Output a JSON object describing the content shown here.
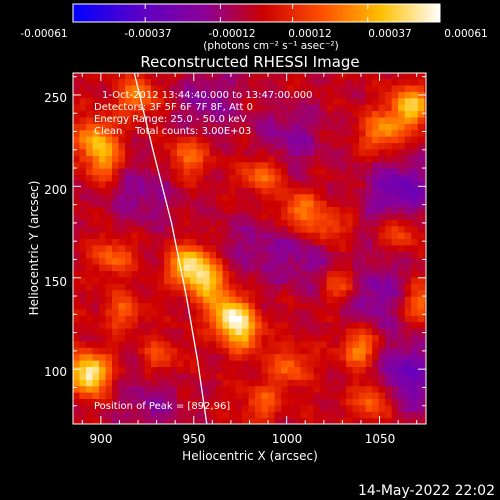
{
  "chart_data": {
    "type": "heatmap",
    "title": "Reconstructed RHESSI Image",
    "xlabel": "Heliocentric X (arcsec)",
    "ylabel": "Heliocentric Y (arcsec)",
    "xlim": [
      885,
      1075
    ],
    "ylim": [
      70,
      262
    ],
    "x_ticks": [
      900,
      950,
      1000,
      1050
    ],
    "y_ticks": [
      100,
      150,
      200,
      250
    ],
    "colorbar": {
      "range": [
        -0.00061,
        0.00061
      ],
      "tick_values": [
        -0.00061,
        -0.00037,
        -0.00012,
        0.00012,
        0.00037,
        0.00061
      ],
      "tick_labels": [
        "-0.00061",
        "-0.00037",
        "-0.00012",
        "0.00012",
        "0.00037",
        "0.00061"
      ],
      "units_label": "(photons cm⁻² s⁻¹ asec⁻²)",
      "colormap": [
        "#0000ff",
        "#5a00c8",
        "#8c0096",
        "#cc0000",
        "#ff5000",
        "#ffc000",
        "#ffffff"
      ]
    },
    "annotations": {
      "time_range": "1-Oct-2012 13:44:40.000 to 13:47:00.000",
      "detectors": "Detectors: 3F 5F 6F 7F 8F, Att 0",
      "energy_range": "Energy Range: 25.0 - 50.0 keV",
      "clean_info": "Clean    Total counts: 3.00E+03",
      "peak_position": "Position of Peak = [892,96]"
    },
    "peaks": [
      {
        "x": 892,
        "y": 96,
        "level": 1.0
      },
      {
        "x": 946,
        "y": 155,
        "level": 0.85
      },
      {
        "x": 968,
        "y": 128,
        "level": 0.8
      },
      {
        "x": 957,
        "y": 145,
        "level": 0.6
      },
      {
        "x": 975,
        "y": 118,
        "level": 0.55
      },
      {
        "x": 1065,
        "y": 242,
        "level": 0.75
      },
      {
        "x": 1050,
        "y": 228,
        "level": 0.55
      },
      {
        "x": 895,
        "y": 225,
        "level": 0.55
      },
      {
        "x": 900,
        "y": 212,
        "level": 0.5
      },
      {
        "x": 918,
        "y": 248,
        "level": 0.5
      },
      {
        "x": 945,
        "y": 215,
        "level": 0.45
      },
      {
        "x": 985,
        "y": 205,
        "level": 0.45
      },
      {
        "x": 1005,
        "y": 185,
        "level": 0.5
      },
      {
        "x": 1020,
        "y": 175,
        "level": 0.4
      },
      {
        "x": 1038,
        "y": 110,
        "level": 0.55
      },
      {
        "x": 1045,
        "y": 82,
        "level": 0.5
      },
      {
        "x": 1028,
        "y": 145,
        "level": 0.45
      },
      {
        "x": 905,
        "y": 160,
        "level": 0.4
      },
      {
        "x": 910,
        "y": 130,
        "level": 0.35
      },
      {
        "x": 1000,
        "y": 100,
        "level": 0.4
      },
      {
        "x": 985,
        "y": 80,
        "level": 0.35
      },
      {
        "x": 1070,
        "y": 135,
        "level": 0.45
      },
      {
        "x": 1060,
        "y": 175,
        "level": 0.4
      },
      {
        "x": 930,
        "y": 105,
        "level": 0.3
      }
    ],
    "troughs": [
      {
        "x": 1060,
        "y": 195,
        "level": -0.9
      },
      {
        "x": 1045,
        "y": 140,
        "level": -0.7
      },
      {
        "x": 1062,
        "y": 95,
        "level": -0.9
      },
      {
        "x": 1000,
        "y": 225,
        "level": -0.55
      },
      {
        "x": 920,
        "y": 195,
        "level": -0.5
      },
      {
        "x": 1010,
        "y": 160,
        "level": -0.5
      },
      {
        "x": 955,
        "y": 245,
        "level": -0.5
      },
      {
        "x": 925,
        "y": 80,
        "level": -0.45
      },
      {
        "x": 980,
        "y": 165,
        "level": -0.4
      }
    ],
    "limb_curve": {
      "x": [
        918,
        928,
        938,
        946,
        952,
        957
      ],
      "y": [
        262,
        220,
        180,
        140,
        105,
        70
      ]
    }
  },
  "footer": {
    "date": "14-May-2022 22:02"
  }
}
